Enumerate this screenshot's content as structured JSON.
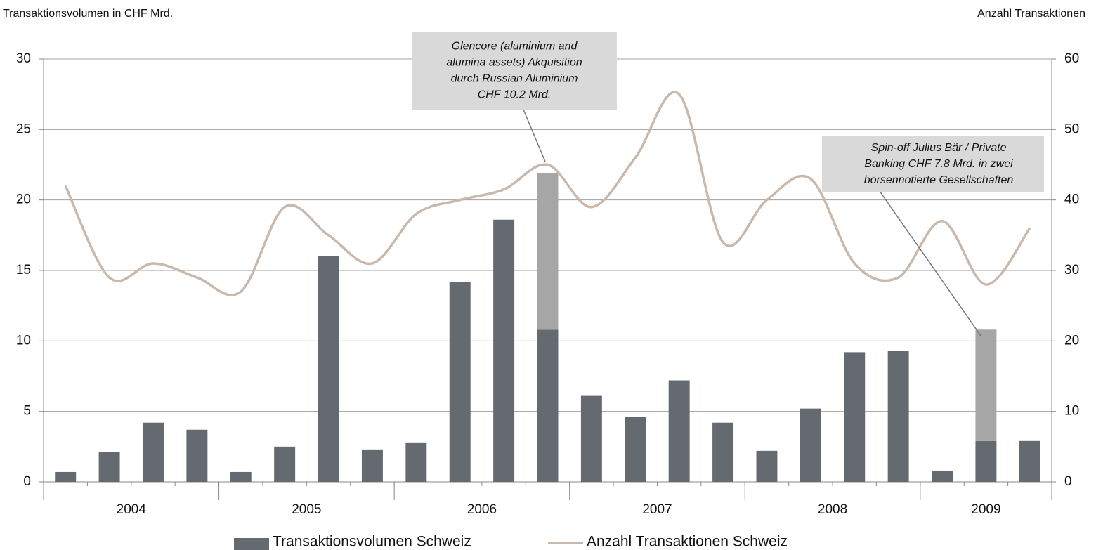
{
  "chart_data": {
    "type": "bar",
    "ylabel": "Transaktionsvolumen in CHF Mrd.",
    "y2label": "Anzahl Transaktionen",
    "categories": [
      "2004",
      "2004",
      "2004",
      "2004",
      "2005",
      "2005",
      "2005",
      "2005",
      "2006",
      "2006",
      "2006",
      "2006",
      "2007",
      "2007",
      "2007",
      "2007",
      "2008",
      "2008",
      "2008",
      "2008",
      "2009",
      "2009",
      "2009"
    ],
    "series": [
      {
        "name": "Transaktionsvolumen Schweiz",
        "type": "bar",
        "color": "#646a70",
        "values": [
          0.7,
          2.1,
          4.2,
          3.7,
          0.7,
          2.5,
          16.0,
          2.3,
          2.8,
          14.2,
          18.6,
          10.8,
          6.1,
          4.6,
          7.2,
          4.2,
          2.2,
          5.2,
          9.2,
          9.3,
          0.8,
          2.9,
          2.9
        ]
      },
      {
        "type": "bar",
        "color": "#a6a6a6",
        "values": [
          null,
          null,
          null,
          null,
          null,
          null,
          null,
          null,
          null,
          null,
          null,
          11.1,
          null,
          null,
          null,
          null,
          null,
          null,
          null,
          null,
          null,
          7.9,
          null
        ]
      },
      {
        "name": "Anzahl Transaktionen Schweiz",
        "type": "line",
        "axis": "y2",
        "color": "#c9b9ac",
        "values": [
          42,
          29,
          31,
          29,
          27,
          39,
          35,
          31,
          38,
          40,
          41.5,
          45,
          39,
          46,
          55,
          34,
          40,
          43,
          31,
          29,
          37,
          28,
          36
        ]
      }
    ],
    "ylim": [
      0,
      30
    ],
    "yticks": [
      0,
      5,
      10,
      15,
      20,
      25,
      30
    ],
    "y2lim": [
      0,
      60
    ],
    "y2ticks": [
      0,
      10,
      20,
      30,
      40,
      50,
      60
    ],
    "grid": true,
    "legend": "bottom",
    "annotations": [
      {
        "lines": [
          "Glencore (aluminium and",
          "alumina assets) Akquisition",
          "durch Russian Aluminium",
          "CHF 10.2 Mrd."
        ]
      },
      {
        "lines": [
          "Spin-off Julius Bär / Private",
          "Banking CHF 7.8 Mrd. in zwei",
          "börsennotierte Gesellschaften"
        ]
      }
    ]
  }
}
